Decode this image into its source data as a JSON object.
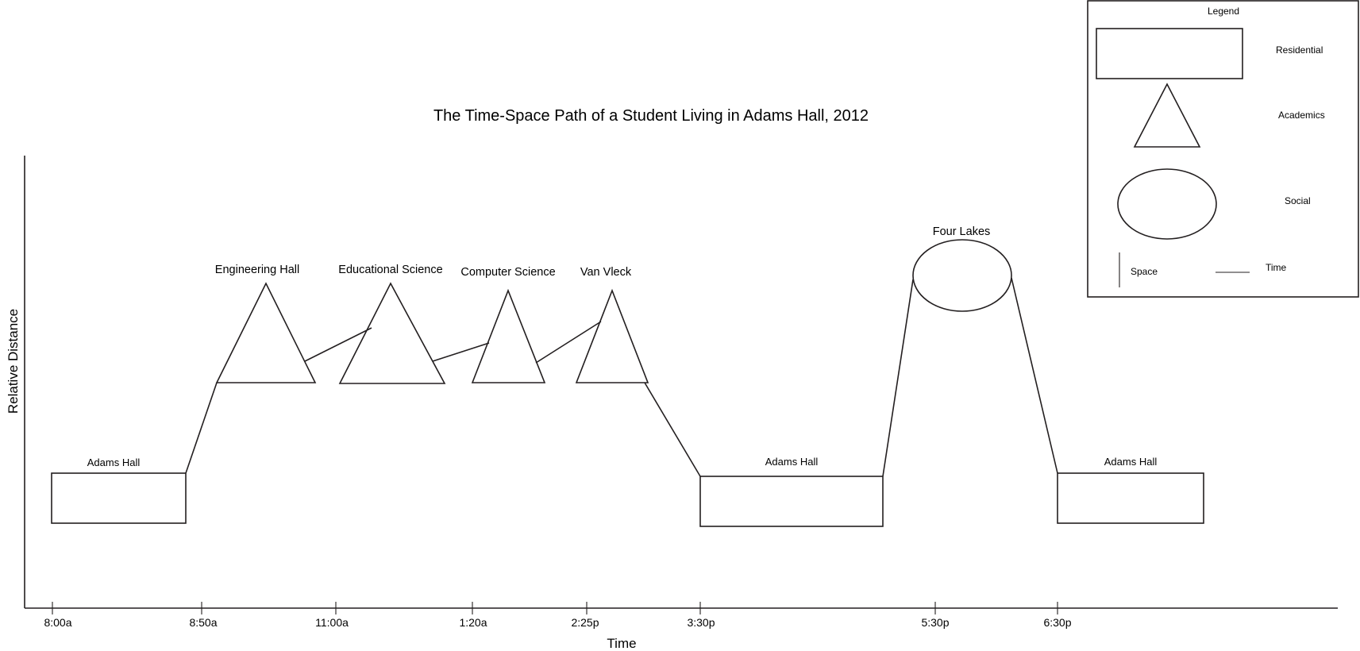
{
  "title": "The Time-Space Path of a Student Living in Adams Hall, 2012",
  "axes": {
    "x_label": "Time",
    "y_label": "Relative Distance"
  },
  "time_ticks": [
    "8:00a",
    "8:50a",
    "11:00a",
    "1:20a",
    "2:25p",
    "3:30p",
    "5:30p",
    "6:30p"
  ],
  "stops": [
    {
      "name": "Adams Hall",
      "type": "residential"
    },
    {
      "name": "Engineering Hall",
      "type": "academics"
    },
    {
      "name": "Educational Science",
      "type": "academics"
    },
    {
      "name": "Computer Science",
      "type": "academics"
    },
    {
      "name": "Van Vleck",
      "type": "academics"
    },
    {
      "name": "Adams Hall",
      "type": "residential"
    },
    {
      "name": "Four Lakes",
      "type": "social"
    },
    {
      "name": "Adams Hall",
      "type": "residential"
    }
  ],
  "legend": {
    "title": "Legend",
    "items": [
      {
        "label": "Residential",
        "shape": "rectangle"
      },
      {
        "label": "Academics",
        "shape": "triangle"
      },
      {
        "label": "Social",
        "shape": "ellipse"
      },
      {
        "label": "Space",
        "shape": "vertical-line"
      },
      {
        "label": "Time",
        "shape": "horizontal-line"
      }
    ]
  },
  "colors": {
    "ink": "#231f20",
    "background": "#ffffff"
  }
}
